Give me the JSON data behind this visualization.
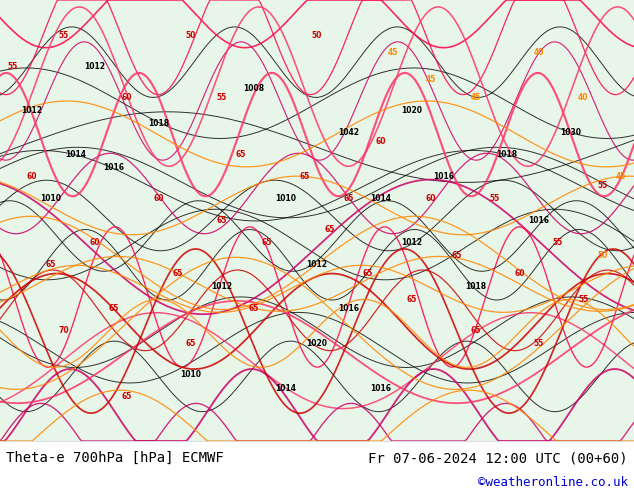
{
  "title_left": "Theta-e 700hPa [hPa] ECMWF",
  "title_right": "Fr 07-06-2024 12:00 UTC (00+60)",
  "credit": "©weatheronline.co.uk",
  "bg_color": "#ffffff",
  "map_bg_color": "#f0f8e8",
  "fig_width": 6.34,
  "fig_height": 4.9,
  "dpi": 100,
  "bottom_bar_height": 0.1,
  "title_fontsize": 10,
  "credit_fontsize": 9,
  "credit_color": "#0000cc",
  "title_color": "#000000"
}
